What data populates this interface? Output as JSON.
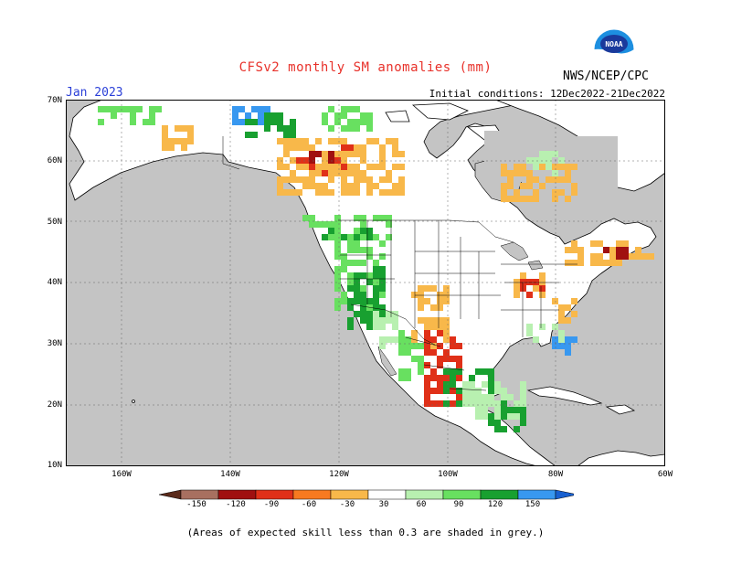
{
  "title": "CFSv2 monthly SM anomalies (mm)",
  "agency": "NWS/NCEP/CPC",
  "logo_text": "NOAA",
  "month_label": "Jan 2023",
  "initial_conditions": "Initial conditions: 12Dec2022-21Dec2022",
  "footnote": "(Areas of expected skill less than 0.3 are shaded in grey.)",
  "lat_labels": [
    "70N",
    "60N",
    "50N",
    "40N",
    "30N",
    "20N",
    "10N"
  ],
  "lon_labels": [
    "160W",
    "140W",
    "120W",
    "100W",
    "80W",
    "60W"
  ],
  "colorbar": {
    "ticks": [
      "-150",
      "-120",
      "-90",
      "-60",
      "-30",
      "30",
      "60",
      "90",
      "120",
      "150"
    ],
    "colors": [
      "#5a2a1a",
      "#a87060",
      "#a01010",
      "#e03018",
      "#f87a20",
      "#f8b84a",
      "#ffffff",
      "#b8f0b0",
      "#68e060",
      "#18a030",
      "#3898f0",
      "#1860d0"
    ]
  },
  "colors": {
    "ocean": "#c4c4c4",
    "land": "#ffffff",
    "dry_strong": "#a01010",
    "dry_moderate": "#e03018",
    "dry_light": "#f8b84a",
    "wet_light": "#b8f0b0",
    "wet_moderate": "#68e060",
    "wet_strong": "#18a030",
    "wet_extreme": "#3898f0"
  }
}
